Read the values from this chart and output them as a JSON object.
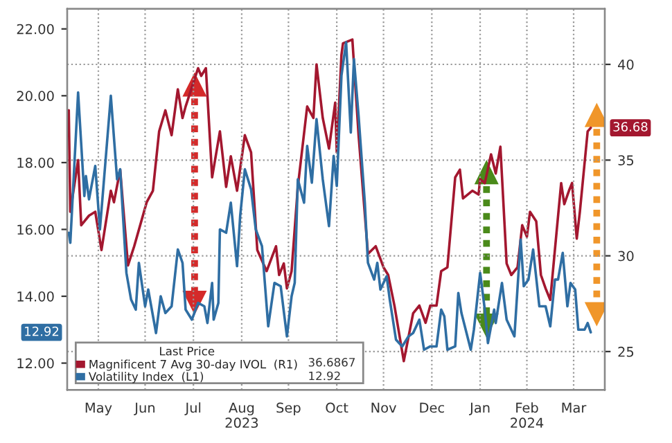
{
  "chart_data": {
    "type": "line",
    "legend_title": "Last Price",
    "annotations": [
      "36.6867",
      "12.92",
      "36.68",
      "12.92"
    ],
    "xlim": [
      "2023-04-26",
      "2024-04-05"
    ],
    "xticks": [
      {
        "value": "2023-05-16",
        "label": "May"
      },
      {
        "value": "2023-06-15",
        "label": "Jun"
      },
      {
        "value": "2023-07-16",
        "label": "Jul"
      },
      {
        "value": "2023-08-16",
        "label": "Aug\n2023"
      },
      {
        "value": "2023-09-15",
        "label": "Sep"
      },
      {
        "value": "2023-10-16",
        "label": "Oct"
      },
      {
        "value": "2023-11-15",
        "label": "Nov"
      },
      {
        "value": "2023-12-16",
        "label": "Dec"
      },
      {
        "value": "2024-01-16",
        "label": "Jan"
      },
      {
        "value": "2024-02-15",
        "label": "Feb\n2024"
      },
      {
        "value": "2024-03-16",
        "label": "Mar"
      }
    ],
    "ylim": [
      11.2,
      22.6
    ],
    "yticks": [
      {
        "value": 12,
        "label": "12.00"
      },
      {
        "value": 14,
        "label": "14.00"
      },
      {
        "value": 16,
        "label": "16.00"
      },
      {
        "value": 18,
        "label": "18.00"
      },
      {
        "value": 20,
        "label": "20.00"
      },
      {
        "value": 22,
        "label": "22.00"
      }
    ],
    "y2lim": [
      23,
      42.9
    ],
    "y2ticks": [
      25,
      30,
      35,
      40
    ],
    "grid": true,
    "legend": "bottom left",
    "line_style": "solid",
    "series": [
      {
        "name": "Magnificent 7 Avg 30-day IVOL  (R1)",
        "color": "#a3172f",
        "axis": "y2",
        "x": [
          "2023-04-27",
          "2023-04-28",
          "2023-05-03",
          "2023-05-05",
          "2023-05-10",
          "2023-05-14",
          "2023-05-18",
          "2023-05-24",
          "2023-05-26",
          "2023-05-30",
          "2023-06-04",
          "2023-06-08",
          "2023-06-16",
          "2023-06-20",
          "2023-06-24",
          "2023-06-28",
          "2023-07-02",
          "2023-07-06",
          "2023-07-09",
          "2023-07-11",
          "2023-07-19",
          "2023-07-21",
          "2023-07-24",
          "2023-07-28",
          "2023-08-02",
          "2023-08-06",
          "2023-08-09",
          "2023-08-13",
          "2023-08-18",
          "2023-08-22",
          "2023-08-26",
          "2023-09-01",
          "2023-09-07",
          "2023-09-09",
          "2023-09-12",
          "2023-09-14",
          "2023-09-17",
          "2023-09-21",
          "2023-09-27",
          "2023-10-01",
          "2023-10-03",
          "2023-10-07",
          "2023-10-11",
          "2023-10-15",
          "2023-10-16",
          "2023-10-19",
          "2023-10-20",
          "2023-10-26",
          "2023-10-30",
          "2023-11-05",
          "2023-11-10",
          "2023-11-15",
          "2023-11-18",
          "2023-11-22",
          "2023-11-28",
          "2023-12-04",
          "2023-12-08",
          "2023-12-12",
          "2023-12-15",
          "2023-12-19",
          "2023-12-22",
          "2023-12-26",
          "2023-12-31",
          "2024-01-03",
          "2024-01-05",
          "2024-01-11",
          "2024-01-15",
          "2024-01-16",
          "2024-01-19",
          "2024-01-23",
          "2024-01-26",
          "2024-01-29",
          "2024-02-02",
          "2024-02-05",
          "2024-02-09",
          "2024-02-12",
          "2024-02-15",
          "2024-02-17",
          "2024-02-21",
          "2024-02-24",
          "2024-02-27",
          "2024-03-01",
          "2024-03-05",
          "2024-03-08",
          "2024-03-10",
          "2024-03-13",
          "2024-03-15",
          "2024-03-18",
          "2024-03-20",
          "2024-03-25",
          "2024-03-27"
        ],
        "values": [
          37.6,
          32.3,
          35.0,
          31.6,
          32.1,
          32.3,
          30.3,
          33.4,
          32.8,
          34.5,
          29.5,
          30.5,
          32.8,
          33.4,
          36.5,
          37.6,
          36.3,
          38.7,
          37.2,
          37.8,
          39.8,
          39.4,
          39.8,
          34.1,
          36.5,
          33.6,
          35.2,
          33.4,
          36.3,
          35.4,
          30.3,
          29.2,
          30.5,
          29.0,
          29.6,
          28.3,
          29.2,
          33.6,
          37.8,
          37.2,
          40.0,
          37.2,
          35.6,
          38.0,
          35.4,
          40.5,
          41.1,
          41.3,
          36.3,
          30.1,
          30.5,
          29.4,
          29.0,
          27.4,
          24.5,
          27.0,
          27.4,
          26.5,
          27.4,
          27.4,
          29.2,
          29.4,
          34.1,
          34.5,
          33.0,
          33.4,
          33.2,
          34.0,
          33.8,
          35.3,
          34.3,
          35.7,
          29.6,
          29.0,
          29.4,
          31.6,
          31.0,
          32.3,
          31.8,
          29.0,
          28.3,
          27.7,
          31.2,
          33.8,
          32.7,
          33.4,
          33.8,
          30.9,
          32.3,
          36.5,
          36.6867
        ]
      },
      {
        "name": "Volatility Index  (L1)",
        "color": "#2f6ea3",
        "axis": "y",
        "x": [
          "2023-04-27",
          "2023-04-28",
          "2023-05-03",
          "2023-05-07",
          "2023-05-08",
          "2023-05-10",
          "2023-05-14",
          "2023-05-17",
          "2023-05-24",
          "2023-05-28",
          "2023-05-30",
          "2023-06-03",
          "2023-06-06",
          "2023-06-09",
          "2023-06-11",
          "2023-06-15",
          "2023-06-17",
          "2023-06-22",
          "2023-06-25",
          "2023-06-28",
          "2023-07-02",
          "2023-07-06",
          "2023-07-09",
          "2023-07-11",
          "2023-07-15",
          "2023-07-19",
          "2023-07-23",
          "2023-07-25",
          "2023-07-28",
          "2023-07-29",
          "2023-08-01",
          "2023-08-02",
          "2023-08-06",
          "2023-08-09",
          "2023-08-13",
          "2023-08-15",
          "2023-08-18",
          "2023-08-22",
          "2023-08-25",
          "2023-08-29",
          "2023-09-02",
          "2023-09-06",
          "2023-09-10",
          "2023-09-14",
          "2023-09-17",
          "2023-09-19",
          "2023-09-21",
          "2023-09-25",
          "2023-09-27",
          "2023-09-30",
          "2023-10-03",
          "2023-10-07",
          "2023-10-11",
          "2023-10-14",
          "2023-10-16",
          "2023-10-19",
          "2023-10-22",
          "2023-10-25",
          "2023-10-27",
          "2023-10-30",
          "2023-11-03",
          "2023-11-05",
          "2023-11-09",
          "2023-11-11",
          "2023-11-13",
          "2023-11-17",
          "2023-11-19",
          "2023-11-23",
          "2023-11-27",
          "2023-12-01",
          "2023-12-04",
          "2023-12-08",
          "2023-12-11",
          "2023-12-15",
          "2023-12-19",
          "2023-12-22",
          "2023-12-24",
          "2023-12-26",
          "2023-12-31",
          "2024-01-02",
          "2024-01-04",
          "2024-01-10",
          "2024-01-12",
          "2024-01-16",
          "2024-01-19",
          "2024-01-21",
          "2024-01-25",
          "2024-01-26",
          "2024-01-30",
          "2024-02-02",
          "2024-02-07",
          "2024-02-11",
          "2024-02-13",
          "2024-02-16",
          "2024-02-19",
          "2024-02-23",
          "2024-02-27",
          "2024-03-01",
          "2024-03-04",
          "2024-03-06",
          "2024-03-09",
          "2024-03-12",
          "2024-03-14",
          "2024-03-17",
          "2024-03-19",
          "2024-03-23",
          "2024-03-25",
          "2024-03-27"
        ],
        "values": [
          15.9,
          15.6,
          20.1,
          17.0,
          17.6,
          16.9,
          17.9,
          16.0,
          20.0,
          17.5,
          17.8,
          14.7,
          13.9,
          13.6,
          15.0,
          13.7,
          14.2,
          12.9,
          14.0,
          13.5,
          13.7,
          15.4,
          15.0,
          13.6,
          13.3,
          13.8,
          13.7,
          13.2,
          14.4,
          13.3,
          13.8,
          16.0,
          15.9,
          16.8,
          14.9,
          16.4,
          17.8,
          17.2,
          16.0,
          15.5,
          13.1,
          14.4,
          14.3,
          12.8,
          14.0,
          14.4,
          17.5,
          16.8,
          18.5,
          17.4,
          19.3,
          17.5,
          16.1,
          18.2,
          17.3,
          20.6,
          21.6,
          18.9,
          21.1,
          19.4,
          16.8,
          15.0,
          14.5,
          15.0,
          14.2,
          14.6,
          13.9,
          12.7,
          12.5,
          12.8,
          12.9,
          13.3,
          12.4,
          12.5,
          12.5,
          13.6,
          13.4,
          12.4,
          12.5,
          14.1,
          13.5,
          12.4,
          13.0,
          14.7,
          13.6,
          12.6,
          13.6,
          13.2,
          14.4,
          13.3,
          12.8,
          15.7,
          14.3,
          14.5,
          15.4,
          13.7,
          13.7,
          13.1,
          14.5,
          14.5,
          15.3,
          13.7,
          14.4,
          14.2,
          13.0,
          13.0,
          13.2,
          12.92
        ]
      }
    ]
  }
}
